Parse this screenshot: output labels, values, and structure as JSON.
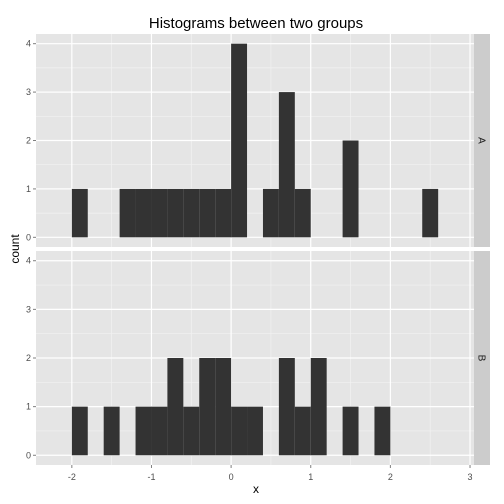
{
  "chart_data": {
    "type": "bar",
    "title": "Histograms between two groups",
    "xlabel": "x",
    "ylabel": "count",
    "xlim": [
      -2.45,
      3.05
    ],
    "ylim": [
      -0.2,
      4.2
    ],
    "x_ticks": [
      -2,
      -1,
      0,
      1,
      2,
      3
    ],
    "x_tick_labels": [
      "-2",
      "-1",
      "0",
      "1",
      "2",
      "3"
    ],
    "y_ticks": [
      0,
      1,
      2,
      3,
      4
    ],
    "y_tick_labels": [
      "0",
      "1",
      "2",
      "3",
      "4"
    ],
    "bin_width": 0.2,
    "grid": true,
    "panel_background": "#e5e5e5",
    "grid_color": "#ffffff",
    "bar_color": "#333333",
    "strip_background": "#cccccc",
    "facets": [
      {
        "label": "A",
        "bins": [
          {
            "x0": -2.0,
            "x1": -1.8,
            "count": 1
          },
          {
            "x0": -1.4,
            "x1": -1.2,
            "count": 1
          },
          {
            "x0": -1.2,
            "x1": -1.0,
            "count": 1
          },
          {
            "x0": -1.0,
            "x1": -0.8,
            "count": 1
          },
          {
            "x0": -0.8,
            "x1": -0.6,
            "count": 1
          },
          {
            "x0": -0.6,
            "x1": -0.4,
            "count": 1
          },
          {
            "x0": -0.4,
            "x1": -0.2,
            "count": 1
          },
          {
            "x0": -0.2,
            "x1": 0.0,
            "count": 1
          },
          {
            "x0": 0.0,
            "x1": 0.2,
            "count": 4
          },
          {
            "x0": 0.4,
            "x1": 0.6,
            "count": 1
          },
          {
            "x0": 0.6,
            "x1": 0.8,
            "count": 3
          },
          {
            "x0": 0.8,
            "x1": 1.0,
            "count": 1
          },
          {
            "x0": 1.4,
            "x1": 1.6,
            "count": 2
          },
          {
            "x0": 2.4,
            "x1": 2.6,
            "count": 1
          }
        ]
      },
      {
        "label": "B",
        "bins": [
          {
            "x0": -2.0,
            "x1": -1.8,
            "count": 1
          },
          {
            "x0": -1.6,
            "x1": -1.4,
            "count": 1
          },
          {
            "x0": -1.2,
            "x1": -1.0,
            "count": 1
          },
          {
            "x0": -1.0,
            "x1": -0.8,
            "count": 1
          },
          {
            "x0": -0.8,
            "x1": -0.6,
            "count": 2
          },
          {
            "x0": -0.6,
            "x1": -0.4,
            "count": 1
          },
          {
            "x0": -0.4,
            "x1": -0.2,
            "count": 2
          },
          {
            "x0": -0.2,
            "x1": 0.0,
            "count": 2
          },
          {
            "x0": 0.0,
            "x1": 0.2,
            "count": 1
          },
          {
            "x0": 0.2,
            "x1": 0.4,
            "count": 1
          },
          {
            "x0": 0.6,
            "x1": 0.8,
            "count": 2
          },
          {
            "x0": 0.8,
            "x1": 1.0,
            "count": 1
          },
          {
            "x0": 1.0,
            "x1": 1.2,
            "count": 2
          },
          {
            "x0": 1.4,
            "x1": 1.6,
            "count": 1
          },
          {
            "x0": 1.8,
            "x1": 2.0,
            "count": 1
          }
        ]
      }
    ]
  }
}
